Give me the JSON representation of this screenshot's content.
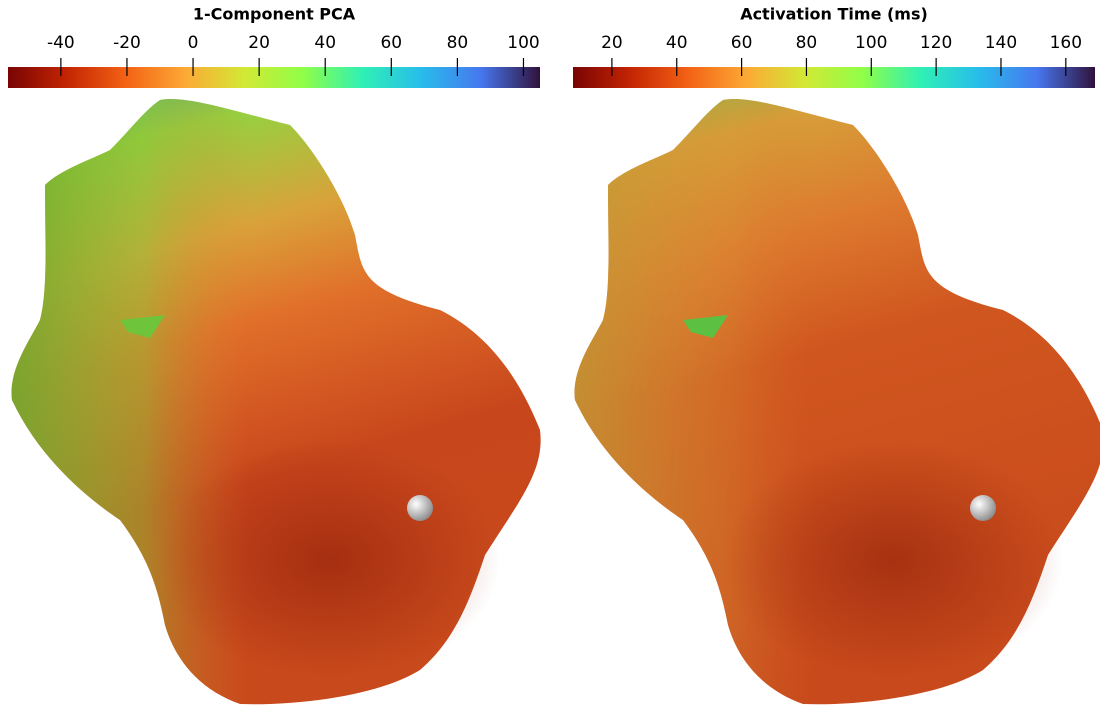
{
  "chart_data": [
    {
      "type": "colorbar",
      "title": "1-Component PCA",
      "xlim": [
        -56,
        105
      ],
      "xticks": [
        -40,
        -20,
        0,
        20,
        40,
        60,
        80,
        100
      ],
      "colors": [
        "#7a0403",
        "#c42503",
        "#f36315",
        "#fca935",
        "#d2e935",
        "#8ffe48",
        "#2ff0b5",
        "#28bceb",
        "#4777ef",
        "#30123b"
      ]
    },
    {
      "type": "colorbar",
      "title": "Activation Time (ms)",
      "xlim": [
        8,
        169
      ],
      "xticks": [
        20,
        40,
        60,
        80,
        100,
        120,
        140,
        160
      ],
      "colors": [
        "#7a0403",
        "#c42503",
        "#f36315",
        "#fca935",
        "#d2e935",
        "#8ffe48",
        "#2ff0b5",
        "#28bceb",
        "#4777ef",
        "#30123b"
      ]
    }
  ]
}
